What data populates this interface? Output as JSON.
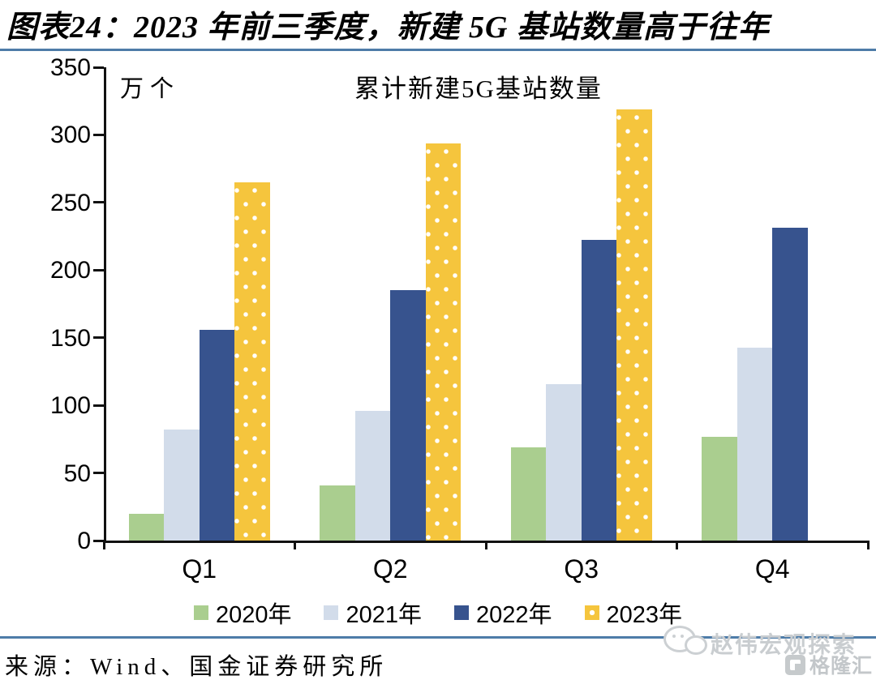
{
  "header": {
    "title": "图表24：2023 年前三季度，新建 5G 基站数量高于往年"
  },
  "chart_data": {
    "type": "bar",
    "title": "累计新建5G基站数量",
    "unit_label": "万个",
    "categories": [
      "Q1",
      "Q2",
      "Q3",
      "Q4"
    ],
    "series": [
      {
        "name": "2020年",
        "color": "#aace8f",
        "values": [
          19.8,
          41,
          69,
          77
        ]
      },
      {
        "name": "2021年",
        "color": "#d2dcea",
        "values": [
          81.9,
          96.1,
          115.9,
          142.5
        ]
      },
      {
        "name": "2022年",
        "color": "#37538e",
        "values": [
          155.9,
          185.4,
          222.2,
          231.2
        ]
      },
      {
        "name": "2023年",
        "color": "#f5c53d",
        "pattern": "white-dots",
        "values": [
          264.6,
          293.7,
          318.9,
          null
        ]
      }
    ],
    "ylim": [
      0,
      350
    ],
    "ytick_step": 50,
    "grid": false,
    "legend_position": "bottom"
  },
  "footer": {
    "source": "来源：Wind、国金证券研究所"
  },
  "watermark": {
    "brand": "赵伟宏观探索",
    "logo": "格隆汇"
  },
  "colors": {
    "divider": "#4e7ca8",
    "axis": "#000000",
    "watermark_gray": "#c6cacc"
  }
}
